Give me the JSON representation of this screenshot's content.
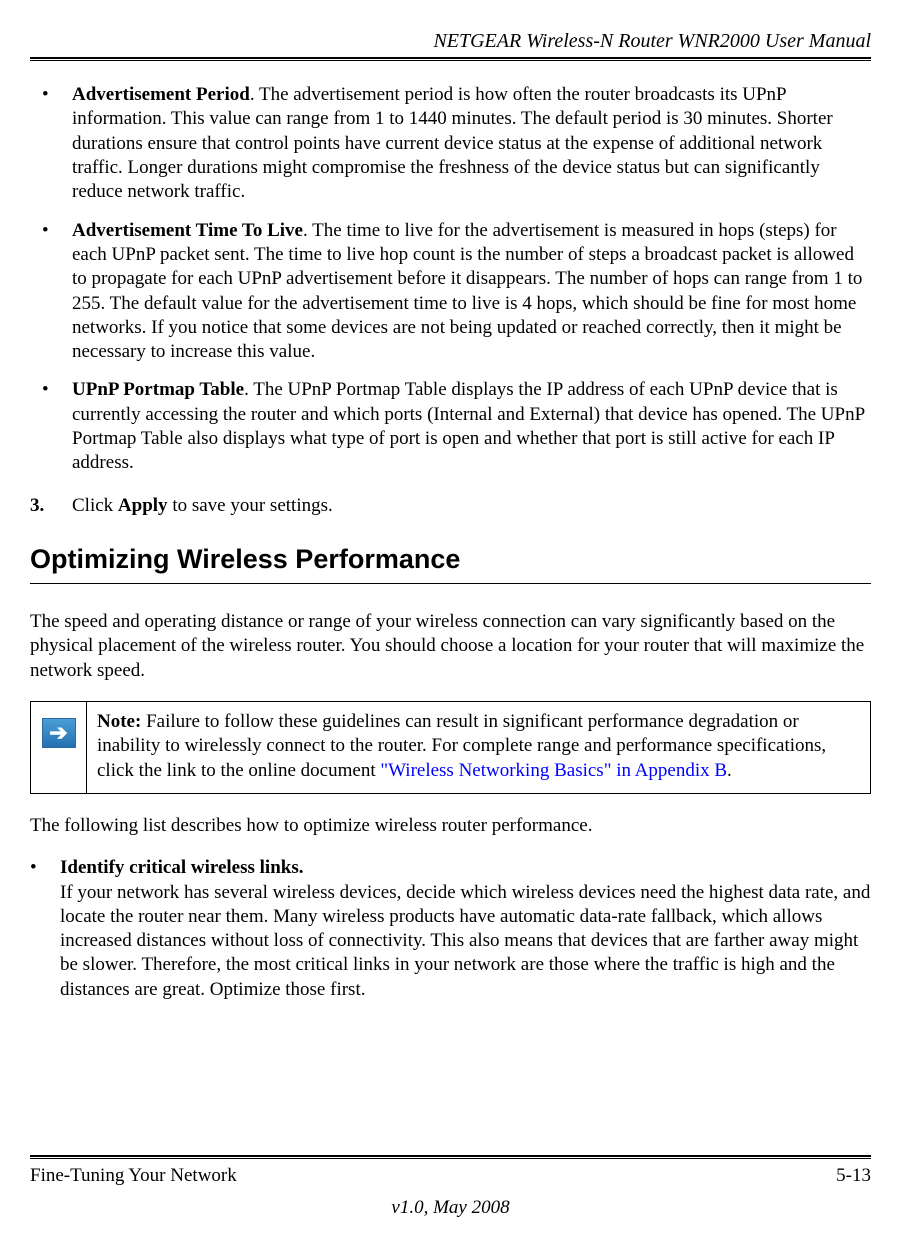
{
  "header": {
    "title": "NETGEAR Wireless-N Router WNR2000 User Manual"
  },
  "bullets": [
    {
      "title": "Advertisement Period",
      "text": ". The advertisement period is how often the router broadcasts its UPnP information. This value can range from 1 to 1440 minutes. The default period is 30 minutes. Shorter durations ensure that control points have current device status at the expense of additional network traffic. Longer durations might compromise the freshness of the device status but can significantly reduce network traffic."
    },
    {
      "title": "Advertisement Time To Live",
      "text": ". The time to live for the advertisement is measured in hops (steps) for each UPnP packet sent. The time to live hop count is the number of steps a broadcast packet is allowed to propagate for each UPnP advertisement before it disappears. The number of hops can range from 1 to 255. The default value for the advertisement time to live is 4 hops, which should be fine for most home networks. If you notice that some devices are not being updated or reached correctly, then it might be necessary to increase this value."
    },
    {
      "title": "UPnP Portmap Table",
      "text": ". The UPnP Portmap Table displays the IP address of each UPnP device that is currently accessing the router and which ports (Internal and External) that device has opened. The UPnP Portmap Table also displays what type of port is open and whether that port is still active for each IP address."
    }
  ],
  "step": {
    "number": "3.",
    "pre": "Click ",
    "bold": "Apply",
    "post": " to save your settings."
  },
  "section": {
    "heading": "Optimizing Wireless Performance"
  },
  "intro": "The speed and operating distance or range of your wireless connection can vary significantly based on the physical placement of the wireless router. You should choose a location for your router that will maximize the network speed.",
  "note": {
    "label": "Note:",
    "text1": " Failure to follow these guidelines can result in significant performance degradation or inability to wirelessly connect to the router. For complete range and performance specifications, click the link to the online document ",
    "link": "\"Wireless Networking Basics\" in Appendix B",
    "text2": "."
  },
  "after_note": "The following list describes how to optimize wireless router performance.",
  "opt_item": {
    "title": "Identify critical wireless links.",
    "body": "If your network has several wireless devices, decide which wireless devices need the highest data rate, and locate the router near them. Many wireless products have automatic data-rate fallback, which allows increased distances without loss of connectivity. This also means that devices that are farther away might be slower. Therefore, the most critical links in your network are those where the traffic is high and the distances are great. Optimize those first."
  },
  "footer": {
    "left": "Fine-Tuning Your Network",
    "right": "5-13",
    "center": "v1.0, May 2008"
  },
  "colors": {
    "link": "#0000ff",
    "icon_bg_top": "#4a9fd8",
    "icon_bg_bottom": "#2570b0"
  }
}
